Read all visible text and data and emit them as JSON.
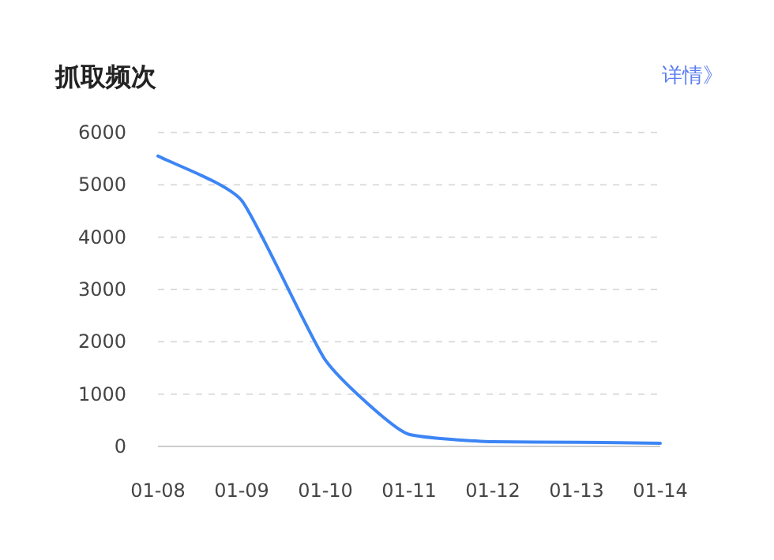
{
  "chart_data": {
    "type": "line",
    "title": "抓取频次",
    "annotations": [
      "详情》"
    ],
    "categories": [
      "01-08",
      "01-09",
      "01-10",
      "01-11",
      "01-12",
      "01-13",
      "01-14"
    ],
    "series": [
      {
        "color": "#3d85f5",
        "values": [
          5550,
          4700,
          1650,
          230,
          90,
          80,
          60
        ]
      }
    ],
    "ylim": [
      0,
      6000
    ],
    "yticks": [
      0,
      1000,
      2000,
      3000,
      4000,
      5000,
      6000
    ],
    "grid": "y",
    "marker": "none",
    "line_style": "solid"
  }
}
